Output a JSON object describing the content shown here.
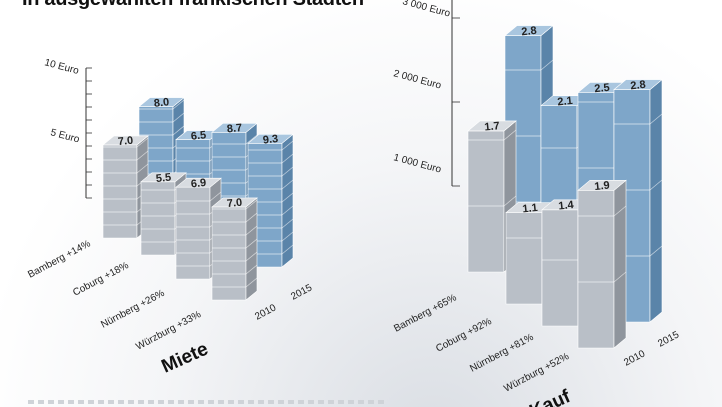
{
  "headline": "In ausgewählten fränkischen Städten",
  "colors": {
    "y2010_front": "#b9bfc7",
    "y2010_side": "#8f959d",
    "y2010_top": "#d8dce1",
    "y2015_front": "#7ea6c9",
    "y2015_side": "#5a84a9",
    "y2015_top": "#a9c6df"
  },
  "chart_data": [
    {
      "type": "bar",
      "title": "Miete",
      "unit": "Euro",
      "y_ticks": [
        "5 Euro",
        "10 Euro"
      ],
      "categories": [
        "Bamberg +14%",
        "Coburg +18%",
        "Nürnberg +26%",
        "Würzburg +33%"
      ],
      "series": [
        {
          "name": "2010",
          "values": [
            7.0,
            5.5,
            6.9,
            7.0
          ],
          "labels": [
            "7.0",
            "5.5",
            "6.9",
            "7.0"
          ]
        },
        {
          "name": "2015",
          "values": [
            8.0,
            6.5,
            8.7,
            9.3
          ],
          "labels": [
            "8.0",
            "6.5",
            "8.7",
            "9.3"
          ]
        }
      ]
    },
    {
      "type": "bar",
      "title": "Kauf",
      "unit": "Euro",
      "y_ticks": [
        "1 000 Euro",
        "2 000 Euro",
        "3 000 Euro"
      ],
      "categories": [
        "Bamberg +65%",
        "Coburg +92%",
        "Nürnberg +81%",
        "Würzburg +52%"
      ],
      "series": [
        {
          "name": "2010",
          "values": [
            1700,
            1100,
            1400,
            1900
          ],
          "labels": [
            "1.7",
            "1.1",
            "1.4",
            "1.9"
          ]
        },
        {
          "name": "2015",
          "values": [
            2800,
            2100,
            2500,
            2800
          ],
          "labels": [
            "2.8",
            "2.1",
            "2.5",
            "2.8"
          ]
        }
      ]
    }
  ]
}
